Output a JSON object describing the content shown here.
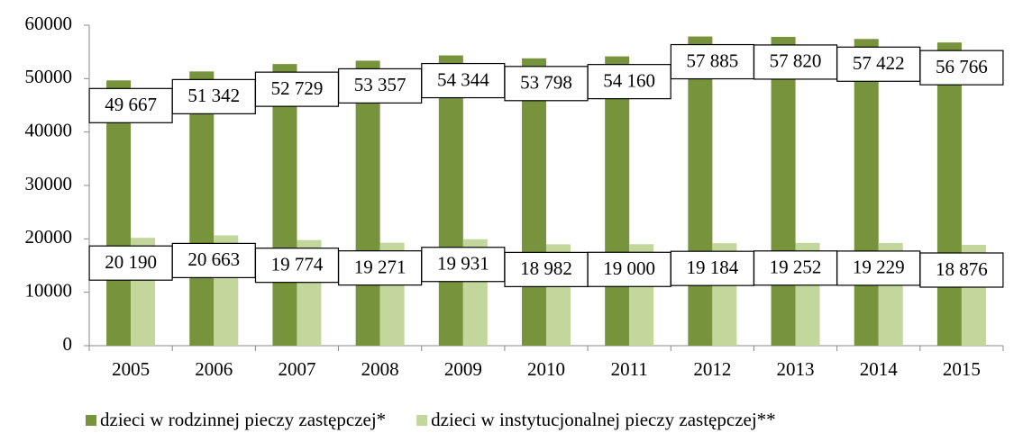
{
  "chart_data": {
    "type": "bar",
    "categories": [
      "2005",
      "2006",
      "2007",
      "2008",
      "2009",
      "2010",
      "2011",
      "2012",
      "2013",
      "2014",
      "2015"
    ],
    "series": [
      {
        "name": "dzieci w rodzinnej pieczy zastępczej*",
        "color": "#77933c",
        "values": [
          49667,
          51342,
          52729,
          53357,
          54344,
          53798,
          54160,
          57885,
          57820,
          57422,
          56766
        ],
        "value_labels": [
          "49 667",
          "51 342",
          "52 729",
          "53 357",
          "54 344",
          "53 798",
          "54 160",
          "57 885",
          "57 820",
          "57 422",
          "56 766"
        ]
      },
      {
        "name": "dzieci w instytucjonalnej pieczy zastępczej**",
        "color": "#c3d69b",
        "values": [
          20190,
          20663,
          19774,
          19271,
          19931,
          18982,
          19000,
          19184,
          19252,
          19229,
          18876
        ],
        "value_labels": [
          "20 190",
          "20 663",
          "19 774",
          "19 271",
          "19 931",
          "18 982",
          "19 000",
          "19 184",
          "19 252",
          "19 229",
          "18 876"
        ]
      }
    ],
    "ylim": [
      0,
      60000
    ],
    "yticks": [
      0,
      10000,
      20000,
      30000,
      40000,
      50000,
      60000
    ],
    "grid": false,
    "legend": "bottom"
  }
}
